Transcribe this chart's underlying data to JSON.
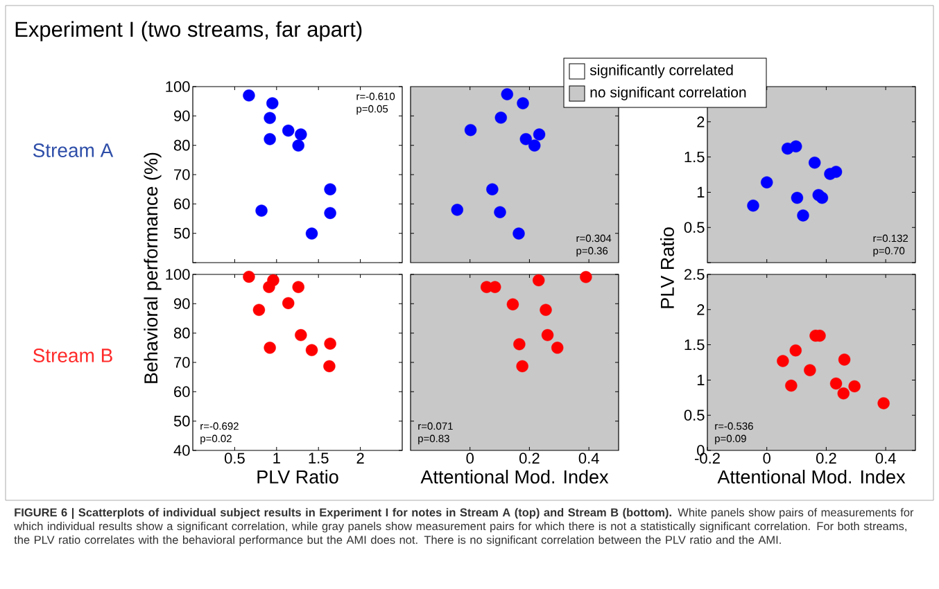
{
  "chart_data": [
    {
      "type": "scatter",
      "title": "Experiment I (two streams, far apart)",
      "x": [
        0.67,
        0.95,
        0.92,
        0.92,
        1.14,
        1.29,
        1.26,
        0.82,
        1.64,
        1.64,
        1.42
      ],
      "marker": "circle",
      "xlim": [
        0,
        2.5
      ],
      "ylim": [
        40,
        100
      ],
      "xticks": [
        0.5,
        1,
        1.5,
        2
      ],
      "yticks": [
        {
          "value": 40,
          "label": null
        },
        50,
        60,
        70,
        80,
        90,
        100
      ],
      "tick_labels": "y",
      "series": [
        {
          "color": "#0000ff",
          "values": [
            97.0,
            94.3,
            89.3,
            82.1,
            85.0,
            83.7,
            79.9,
            57.7,
            65.0,
            56.9,
            49.9
          ]
        }
      ],
      "annotations": [
        "r=-0.610",
        "p=0.05",
        "Stream A",
        "**FIGURE 6 | Scatterplots of individual subject results in Experiment I for notes in Stream A (top) and Stream B (bottom).** White panels show pairs of measurements for which individual results show a significant correlation, while gray panels show measurement pairs for which there is not a statistically significant correlation. For both streams, the PLV ratio correlates with the behavioral performance but the AMI does not. There is no significant correlation between the PLV ratio and the AMI."
      ]
    },
    {
      "type": "scatter",
      "x": [
        0.125,
        0.178,
        0.104,
        0.002,
        0.188,
        0.233,
        0.217,
        0.075,
        -0.043,
        0.101,
        0.164
      ],
      "marker": "circle",
      "xlim": [
        -0.2,
        0.5
      ],
      "ylim": [
        40,
        100
      ],
      "xticks": [
        0,
        0.2,
        0.4
      ],
      "yticks": [
        50,
        60,
        70,
        80,
        90
      ],
      "tick_labels": false,
      "series": [
        {
          "color": "#0000ff",
          "values": [
            97.4,
            94.3,
            89.4,
            85.2,
            82.1,
            83.7,
            79.9,
            65.0,
            58.0,
            57.2,
            49.9
          ]
        }
      ],
      "annotations": [
        "r=0.304",
        "p=0.36",
        "significantly correlated",
        "no significant correlation"
      ]
    },
    {
      "type": "scatter",
      "x": [
        -0.046,
        0.0,
        0.07,
        0.098,
        0.102,
        0.122,
        0.161,
        0.174,
        0.186,
        0.213,
        0.233
      ],
      "marker": "circle",
      "xlim": [
        -0.2,
        0.5
      ],
      "ylim": [
        0,
        2.5
      ],
      "xticks": [
        0,
        0.2,
        0.4
      ],
      "yticks": [
        {
          "value": 0,
          "label": null
        },
        0.5,
        1,
        1.5,
        2,
        {
          "value": 2.5,
          "label": null
        }
      ],
      "tick_labels": "y",
      "series": [
        {
          "color": "#0000ff",
          "values": [
            0.81,
            1.14,
            1.62,
            1.65,
            0.92,
            0.67,
            1.42,
            0.96,
            0.92,
            1.26,
            1.29
          ]
        }
      ],
      "annotations": [
        "r=0.132",
        "p=0.70"
      ]
    },
    {
      "type": "scatter",
      "x": [
        0.67,
        0.96,
        0.91,
        1.26,
        1.14,
        0.79,
        1.29,
        0.92,
        1.42,
        1.64,
        1.63
      ],
      "marker": "circle",
      "xlabel": "PLV Ratio",
      "ylabel": "Behavioral performance (%)",
      "xlim": [
        0,
        2.5
      ],
      "ylim": [
        40,
        100
      ],
      "xticks": [
        0.5,
        1,
        1.5,
        2
      ],
      "yticks": [
        40,
        50,
        60,
        70,
        80,
        90,
        100
      ],
      "series": [
        {
          "color": "#ff0000",
          "values": [
            99.2,
            98.0,
            95.7,
            95.7,
            90.2,
            87.9,
            79.3,
            75.0,
            74.2,
            76.4,
            68.7
          ]
        }
      ],
      "annotations": [
        "r=-0.692",
        "p=0.02",
        "Stream B"
      ]
    },
    {
      "type": "scatter",
      "x": [
        0.39,
        0.231,
        0.056,
        0.084,
        0.144,
        0.255,
        0.261,
        0.166,
        0.294,
        0.176
      ],
      "marker": "circle",
      "xlabel": "Attentional Mod. Index",
      "xlim": [
        -0.2,
        0.5
      ],
      "ylim": [
        40,
        100
      ],
      "xticks": [
        0,
        0.2,
        0.4
      ],
      "yticks": [
        50,
        60,
        70,
        80,
        90,
        100
      ],
      "tick_labels": "x",
      "series": [
        {
          "color": "#ff0000",
          "values": [
            99.1,
            98.0,
            95.7,
            95.7,
            89.8,
            87.9,
            79.3,
            76.2,
            75.0,
            68.7
          ]
        }
      ],
      "annotations": [
        "r=0.071",
        "p=0.83"
      ]
    },
    {
      "type": "scatter",
      "x": [
        0.054,
        0.082,
        0.097,
        0.145,
        0.164,
        0.178,
        0.233,
        0.258,
        0.261,
        0.295,
        0.393
      ],
      "marker": "circle",
      "xlabel": "Attentional Mod. Index",
      "ylabel": "PLV Ratio",
      "xlim": [
        -0.2,
        0.5
      ],
      "ylim": [
        0,
        2.5
      ],
      "xticks": [
        -0.2,
        0,
        0.2,
        0.4
      ],
      "yticks": [
        0,
        0.5,
        1,
        1.5,
        2,
        2.5
      ],
      "series": [
        {
          "color": "#ff0000",
          "values": [
            1.27,
            0.92,
            1.42,
            1.14,
            1.63,
            1.63,
            0.95,
            0.81,
            1.29,
            0.91,
            0.67
          ]
        }
      ],
      "annotations": [
        "r=-0.536",
        "p=0.09"
      ]
    }
  ]
}
